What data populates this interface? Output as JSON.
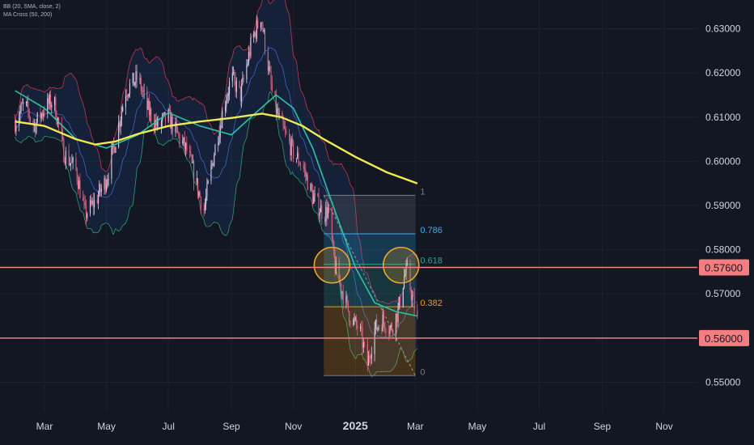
{
  "legend": {
    "bb": "BB (20, SMA, close, 2)",
    "ma": "MA Cross (50, 200)"
  },
  "colors": {
    "background": "#131722",
    "grid": "#1e222d",
    "axis_text": "#d1d4dc",
    "candle_up": "#d7cbe6",
    "candle_down": "#e0607e",
    "ma50": "#26c6a3",
    "ma200": "#f2e94e",
    "bb_basis": "#3f63c9",
    "bb_upper": "#c2344d",
    "bb_lower": "#2e9c6a",
    "bb_fill": "#2d6ee0",
    "level_line": "#f77c80",
    "level_label_bg": "#f77c80",
    "level_label_text": "#131722",
    "fib_1": "#787b86",
    "fib_0786": "#29b6f6",
    "fib_0618": "#26a69a",
    "fib_0382": "#ff9800",
    "fib_0": "#787b86",
    "circle": "#f5a623"
  },
  "chart_data": {
    "type": "candlestick",
    "symbol_timeframe": "daily",
    "x_axis": {
      "ticks": [
        {
          "label": "Mar",
          "date": "2024-03-01",
          "bold": false
        },
        {
          "label": "May",
          "date": "2024-05-01",
          "bold": false
        },
        {
          "label": "Jul",
          "date": "2024-07-01",
          "bold": false
        },
        {
          "label": "Sep",
          "date": "2024-09-01",
          "bold": false
        },
        {
          "label": "Nov",
          "date": "2024-11-01",
          "bold": false
        },
        {
          "label": "2025",
          "date": "2025-01-01",
          "bold": true
        },
        {
          "label": "Mar",
          "date": "2025-03-01",
          "bold": false
        },
        {
          "label": "May",
          "date": "2025-05-01",
          "bold": false
        },
        {
          "label": "Jul",
          "date": "2025-07-01",
          "bold": false
        },
        {
          "label": "Sep",
          "date": "2025-09-01",
          "bold": false
        },
        {
          "label": "Nov",
          "date": "2025-11-01",
          "bold": false
        }
      ]
    },
    "y_axis": {
      "range": [
        0.5435,
        0.6365
      ],
      "ticks": [
        "0.63000",
        "0.62000",
        "0.61000",
        "0.60000",
        "0.59000",
        "0.58000",
        "0.57000",
        "0.56000",
        "0.55000"
      ],
      "tick_values": [
        0.63,
        0.62,
        0.61,
        0.6,
        0.59,
        0.58,
        0.57,
        0.56,
        0.55
      ]
    },
    "grid": true,
    "price_levels": [
      {
        "value": 0.576,
        "label": "0.57600"
      },
      {
        "value": 0.56,
        "label": "0.56000"
      }
    ],
    "fibonacci": {
      "start_date": "2024-12-01",
      "end_date": "2025-03-01",
      "high": 0.5923,
      "low": 0.5515,
      "levels": [
        {
          "ratio": 1,
          "label": "1",
          "price": 0.5923
        },
        {
          "ratio": 0.786,
          "label": "0.786",
          "price": 0.5836
        },
        {
          "ratio": 0.618,
          "label": "0.618",
          "price": 0.5767
        },
        {
          "ratio": 0.382,
          "label": "0.382",
          "price": 0.5671
        },
        {
          "ratio": 0,
          "label": "0",
          "price": 0.5515
        }
      ]
    },
    "highlight_circles": [
      {
        "date": "2024-12-09",
        "price": 0.5765
      },
      {
        "date": "2025-02-15",
        "price": 0.5765
      }
    ],
    "price_path": [
      [
        "2024-02-01",
        0.609
      ],
      [
        "2024-02-10",
        0.613
      ],
      [
        "2024-02-20",
        0.608
      ],
      [
        "2024-03-01",
        0.612
      ],
      [
        "2024-03-10",
        0.614
      ],
      [
        "2024-03-20",
        0.602
      ],
      [
        "2024-04-01",
        0.598
      ],
      [
        "2024-04-10",
        0.588
      ],
      [
        "2024-04-20",
        0.591
      ],
      [
        "2024-05-01",
        0.596
      ],
      [
        "2024-05-10",
        0.605
      ],
      [
        "2024-05-20",
        0.616
      ],
      [
        "2024-06-01",
        0.619
      ],
      [
        "2024-06-10",
        0.612
      ],
      [
        "2024-06-20",
        0.608
      ],
      [
        "2024-07-01",
        0.61
      ],
      [
        "2024-07-10",
        0.606
      ],
      [
        "2024-07-20",
        0.602
      ],
      [
        "2024-08-01",
        0.592
      ],
      [
        "2024-08-05",
        0.589
      ],
      [
        "2024-08-15",
        0.602
      ],
      [
        "2024-08-25",
        0.613
      ],
      [
        "2024-09-01",
        0.619
      ],
      [
        "2024-09-10",
        0.615
      ],
      [
        "2024-09-20",
        0.626
      ],
      [
        "2024-09-30",
        0.633
      ],
      [
        "2024-10-05",
        0.625
      ],
      [
        "2024-10-12",
        0.614
      ],
      [
        "2024-10-20",
        0.608
      ],
      [
        "2024-11-01",
        0.602
      ],
      [
        "2024-11-10",
        0.599
      ],
      [
        "2024-11-20",
        0.592
      ],
      [
        "2024-12-01",
        0.588
      ],
      [
        "2024-12-05",
        0.589
      ],
      [
        "2024-12-12",
        0.576
      ],
      [
        "2024-12-20",
        0.57
      ],
      [
        "2024-12-28",
        0.564
      ],
      [
        "2025-01-05",
        0.562
      ],
      [
        "2025-01-13",
        0.554
      ],
      [
        "2025-01-20",
        0.562
      ],
      [
        "2025-01-28",
        0.564
      ],
      [
        "2025-02-05",
        0.562
      ],
      [
        "2025-02-12",
        0.566
      ],
      [
        "2025-02-18",
        0.574
      ],
      [
        "2025-02-21",
        0.575
      ],
      [
        "2025-02-26",
        0.569
      ],
      [
        "2025-03-03",
        0.564
      ]
    ],
    "ma50_path": [
      [
        "2024-02-01",
        0.616
      ],
      [
        "2024-03-01",
        0.612
      ],
      [
        "2024-04-01",
        0.605
      ],
      [
        "2024-05-01",
        0.603
      ],
      [
        "2024-06-01",
        0.606
      ],
      [
        "2024-07-01",
        0.611
      ],
      [
        "2024-08-01",
        0.608
      ],
      [
        "2024-09-01",
        0.606
      ],
      [
        "2024-09-25",
        0.611
      ],
      [
        "2024-10-15",
        0.615
      ],
      [
        "2024-11-01",
        0.612
      ],
      [
        "2024-11-20",
        0.603
      ],
      [
        "2024-12-10",
        0.59
      ],
      [
        "2025-01-01",
        0.576
      ],
      [
        "2025-01-20",
        0.568
      ],
      [
        "2025-02-10",
        0.566
      ],
      [
        "2025-03-03",
        0.565
      ]
    ],
    "ma200_path": [
      [
        "2024-02-01",
        0.609
      ],
      [
        "2024-03-01",
        0.608
      ],
      [
        "2024-04-01",
        0.605
      ],
      [
        "2024-04-20",
        0.6038
      ],
      [
        "2024-05-10",
        0.6045
      ],
      [
        "2024-06-01",
        0.6062
      ],
      [
        "2024-07-01",
        0.608
      ],
      [
        "2024-08-01",
        0.609
      ],
      [
        "2024-09-01",
        0.6098
      ],
      [
        "2024-10-01",
        0.6108
      ],
      [
        "2024-10-20",
        0.61
      ],
      [
        "2024-11-10",
        0.608
      ],
      [
        "2024-12-01",
        0.605
      ],
      [
        "2025-01-01",
        0.601
      ],
      [
        "2025-02-01",
        0.5975
      ],
      [
        "2025-03-03",
        0.595
      ]
    ]
  }
}
